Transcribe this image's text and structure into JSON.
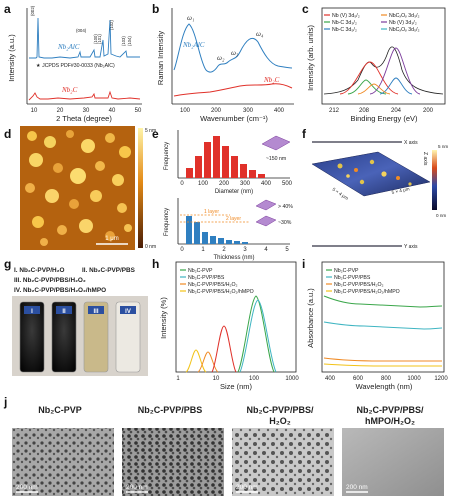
{
  "panels": {
    "a": {
      "label": "a",
      "xlabel": "2 Theta (degree)",
      "ylabel": "Intensity (a.u.)",
      "series_top": "Nb₂AlC",
      "series_bottom": "Nb₂C",
      "jcpds": "JCPDS PDF#30-0033 (Nb₂AlC)",
      "xticks": [
        "10",
        "20",
        "30",
        "40",
        "50"
      ],
      "peaks": [
        "(002)",
        "(004)",
        "(100)",
        "(101)",
        "(102)",
        "(103)",
        "(104)"
      ]
    },
    "b": {
      "label": "b",
      "xlabel": "Wavenumber (cm⁻¹)",
      "ylabel": "Raman Intensity",
      "series_top": "Nb₂AlC",
      "series_bottom": "Nb₂C",
      "xticks": [
        "100",
        "200",
        "300",
        "400"
      ],
      "modes": [
        "ω₁",
        "ω₂",
        "ω₃",
        "ω₄"
      ]
    },
    "c": {
      "label": "c",
      "xlabel": "Binding Energy (eV)",
      "ylabel": "Intensity (arb. units)",
      "xticks": [
        "212",
        "208",
        "204",
        "200"
      ],
      "legend": [
        "Nb (V) 3d₅/₂",
        "Nb-C 3d₃/₂",
        "Nb-C 3d₅/₂",
        "NbCₓOᵧ 3d₃/₂",
        "Nb (V) 3d₃/₂",
        "NbCₓOᵧ 3d₅/₂"
      ]
    },
    "d": {
      "label": "d",
      "scalebar": "1 μm",
      "colorbar_top": "5 nm",
      "colorbar_bottom": "0 nm"
    },
    "e": {
      "label": "e",
      "xlabel_top": "Diameter (nm)",
      "xlabel_bottom": "Thickness (nm)",
      "ylabel": "Frequency",
      "xticks_top": [
        "0",
        "100",
        "200",
        "300",
        "400",
        "500"
      ],
      "xticks_bottom": [
        "0",
        "1",
        "2",
        "3",
        "4",
        "5"
      ],
      "annot_size": "~150 nm",
      "annot_1layer": "1 layer",
      "annot_2layer": "2 layer",
      "annot_40": "> 40%",
      "annot_30": "~30%"
    },
    "f": {
      "label": "f",
      "x_axis": "X axis",
      "y_axis": "Y axis",
      "z_axis": "Z axis",
      "dim1": "5 × 4 μm",
      "dim2": "5 × 4 μm",
      "colorbar_top": "5 nm",
      "colorbar_bottom": "0 nm"
    },
    "g": {
      "label": "g",
      "lines": [
        "I. Nb₂C-PVP/H₂O",
        "II. Nb₂C-PVP/PBS",
        "III. Nb₂C-PVP/PBS/H₂O₂",
        "IV. Nb₂C-PVP/PBS/H₂O₂/hMPO"
      ],
      "vials": [
        "I",
        "II",
        "III",
        "IV"
      ]
    },
    "h": {
      "label": "h",
      "xlabel": "Size (nm)",
      "ylabel": "Intensity (%)",
      "xticks": [
        "1",
        "10",
        "100",
        "1000"
      ],
      "legend": [
        "Nb₂C-PVP",
        "Nb₂C-PVP/PBS",
        "Nb₂C-PVP/PBS/H₂O₂",
        "Nb₂C-PVP/PBS/H₂O₂/hMPO"
      ]
    },
    "i": {
      "label": "i",
      "xlabel": "Wavelength (nm)",
      "ylabel": "Absorbance (a.u.)",
      "xticks": [
        "400",
        "600",
        "800",
        "1000",
        "1200"
      ],
      "legend": [
        "Nb₂C-PVP",
        "Nb₂C-PVP/PBS",
        "Nb₂C-PVP/PBS/H₂O₂",
        "Nb₂C-PVP/PBS/H₂O₂/hMPO"
      ]
    },
    "j": {
      "label": "j",
      "titles": [
        "Nb₂C-PVP",
        "Nb₂C-PVP/PBS",
        "Nb₂C-PVP/PBS/",
        "Nb₂C-PVP/PBS/"
      ],
      "titles2": [
        "",
        "",
        "H₂O₂",
        "hMPO/H₂O₂"
      ],
      "scalebar": "200 nm"
    }
  },
  "colors": {
    "blue": "#2f7fc0",
    "red": "#e0312a",
    "green": "#3aa64a",
    "orange": "#f08a24",
    "yellow": "#f2c318",
    "teal": "#3fb5c2",
    "purple": "#7c3d9c"
  }
}
